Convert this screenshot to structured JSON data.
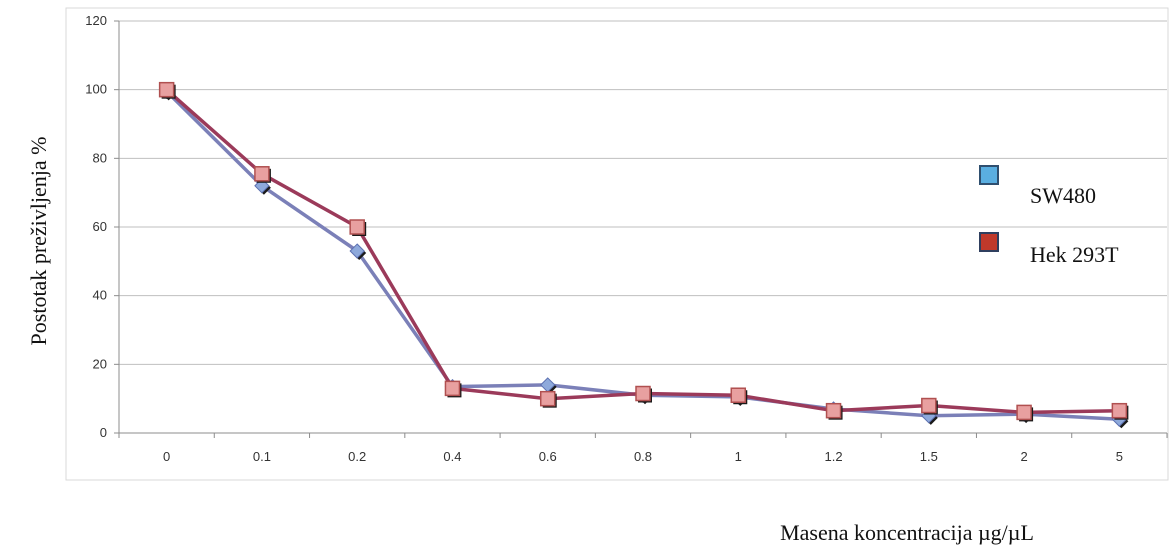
{
  "chart_data": {
    "type": "line",
    "categories": [
      "0",
      "0.1",
      "0.2",
      "0.4",
      "0.6",
      "0.8",
      "1",
      "1.2",
      "1.5",
      "2",
      "5"
    ],
    "series": [
      {
        "name": "SW480",
        "values": [
          99.5,
          72,
          53,
          13.5,
          14,
          11,
          10.5,
          7,
          5,
          5.5,
          4
        ],
        "color": "#5b9bd5",
        "line_color": "#7b80b8",
        "marker": "diamond"
      },
      {
        "name": "Hek 293T",
        "values": [
          100,
          75.5,
          60,
          13,
          10,
          11.5,
          11,
          6.5,
          8,
          6,
          6.5
        ],
        "color": "#c0392b",
        "line_color": "#9b3a5a",
        "marker": "square",
        "marker_fill": "#e8a0a0"
      }
    ],
    "xlabel": "Masena koncentracija µg/µL",
    "ylabel": "Postotak preživljenja  %",
    "ylim": [
      0,
      120
    ],
    "yticks": [
      0,
      20,
      40,
      60,
      80,
      100,
      120
    ],
    "grid": true,
    "legend": "right"
  }
}
